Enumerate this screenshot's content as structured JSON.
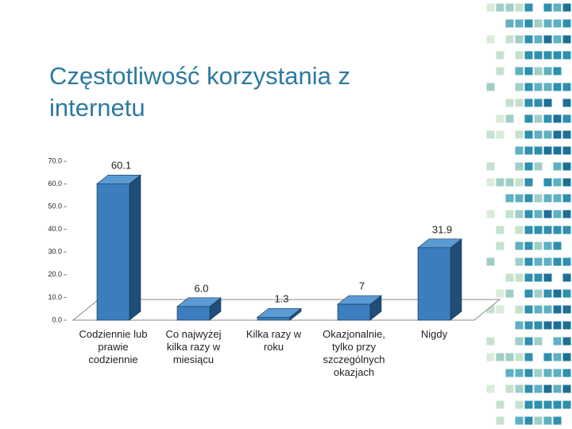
{
  "chart_data": {
    "type": "bar3d",
    "title": "Częstotliwość korzystania z internetu",
    "categories": [
      "Codziennie lub prawie codziennie",
      "Co najwyżej kilka razy w miesiącu",
      "Kilka razy w roku",
      "Okazjonalnie, tylko przy szczególnych okazjach",
      "Nigdy"
    ],
    "values": [
      60.1,
      6.0,
      1.3,
      7,
      31.9
    ],
    "value_labels": [
      "60.1",
      "6.0",
      "1.3",
      "7",
      "31.9"
    ],
    "color": "#3b7dbd",
    "ylim": [
      0,
      70
    ],
    "yticks": [
      {
        "value": 0,
        "label": "0.0"
      },
      {
        "value": 10,
        "label": "10.0"
      },
      {
        "value": 20,
        "label": "20.0"
      },
      {
        "value": 30,
        "label": "30.0"
      },
      {
        "value": 40,
        "label": "40.0"
      },
      {
        "value": 50,
        "label": "50.0"
      },
      {
        "value": 60,
        "label": "60.0"
      },
      {
        "value": 70,
        "label": "70.0"
      }
    ]
  }
}
